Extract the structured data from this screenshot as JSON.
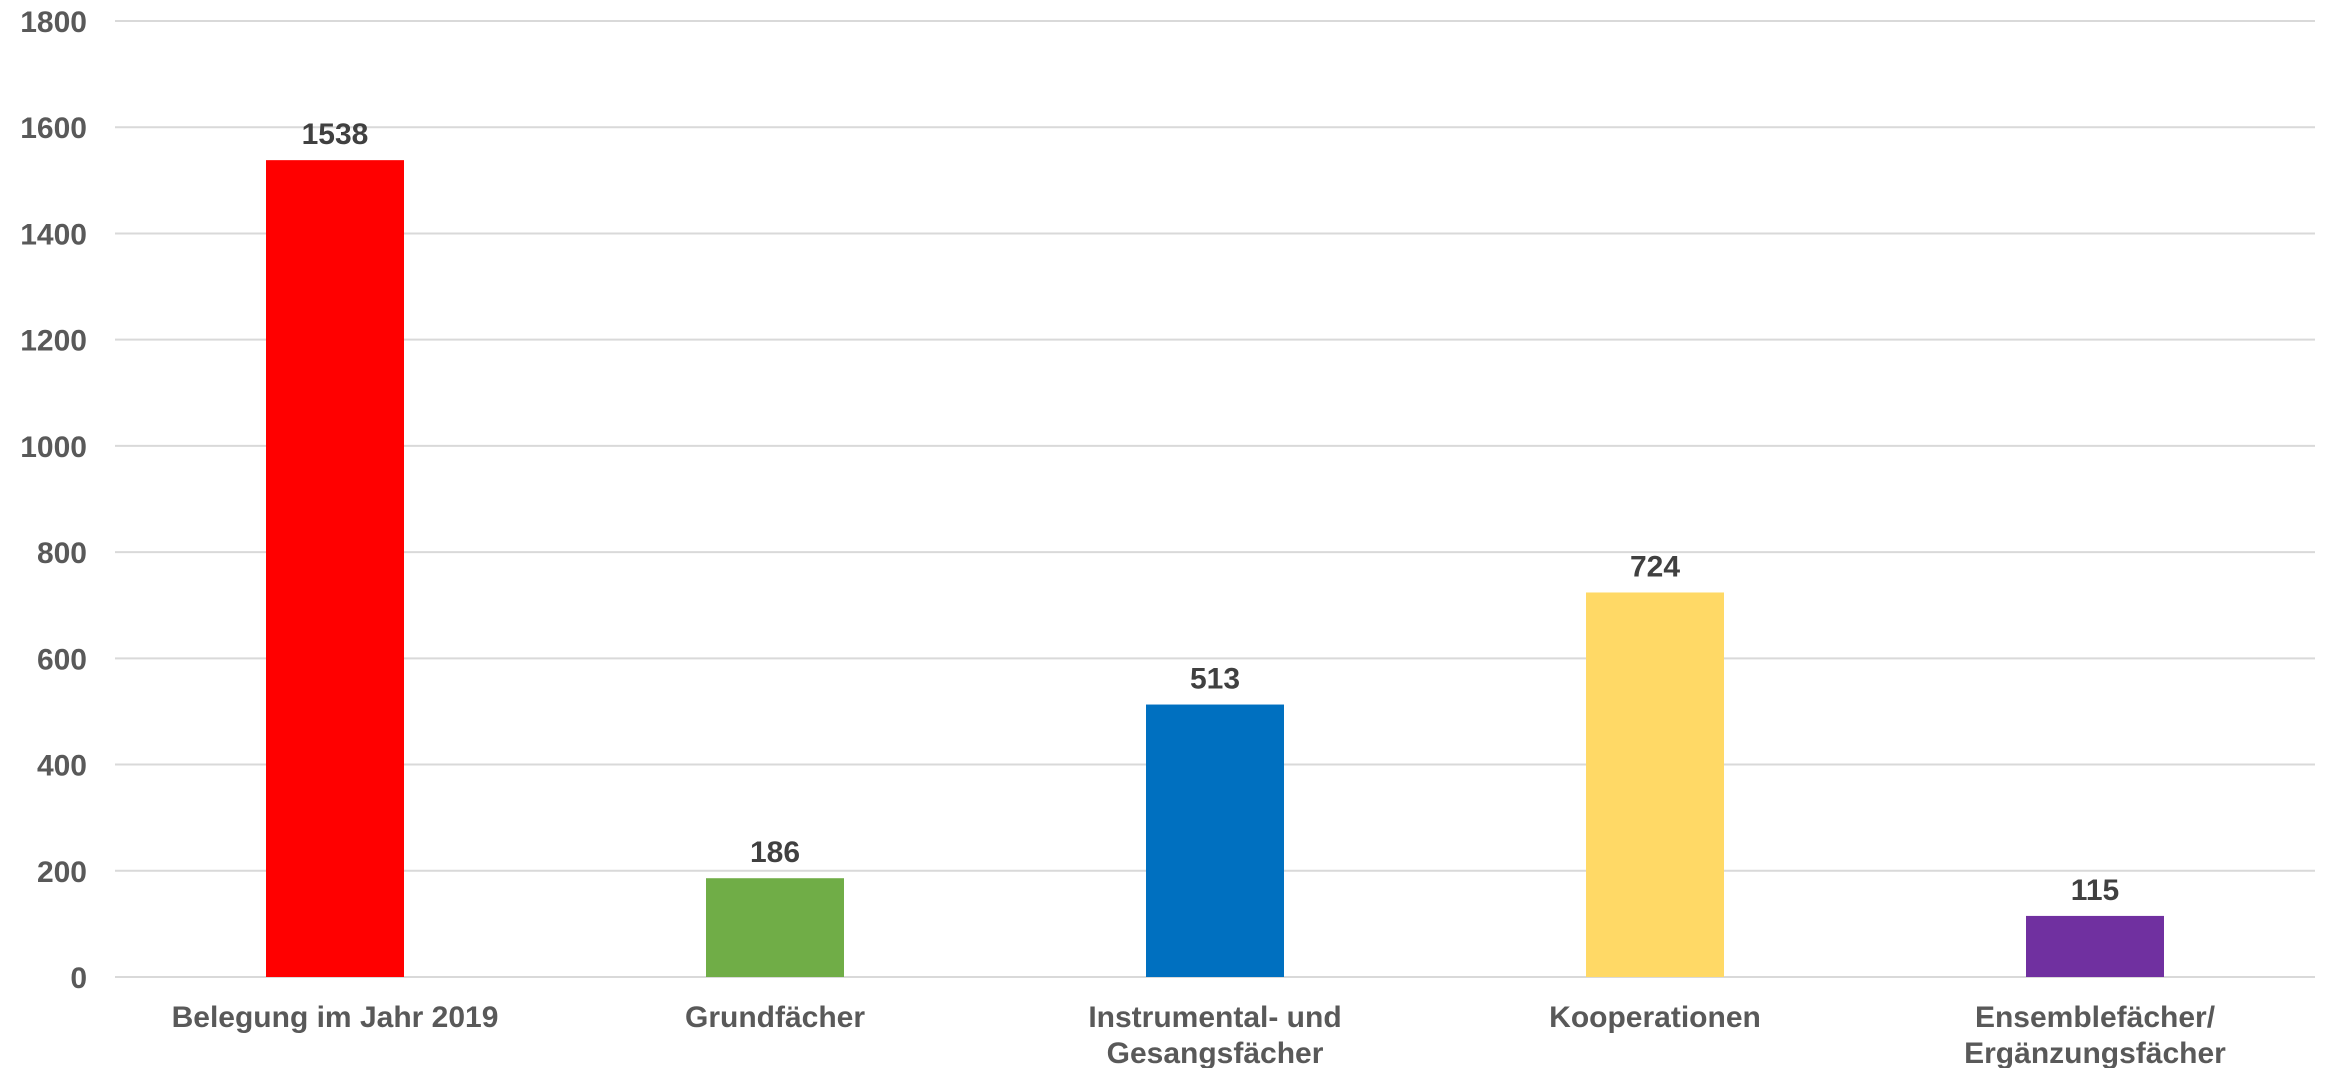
{
  "chart_data": {
    "type": "bar",
    "title": "",
    "xlabel": "",
    "ylabel": "",
    "ylim": [
      0,
      1800
    ],
    "yticks": [
      0,
      200,
      400,
      600,
      800,
      1000,
      1200,
      1400,
      1600,
      1800
    ],
    "grid": true,
    "legend": "none",
    "categories": [
      [
        "Belegung im Jahr 2019"
      ],
      [
        "Grundfächer"
      ],
      [
        "Instrumental- und",
        "Gesangsfächer"
      ],
      [
        "Kooperationen"
      ],
      [
        "Ensemblefächer/",
        "Ergänzungsfächer"
      ]
    ],
    "values": [
      1538,
      186,
      513,
      724,
      115
    ],
    "colors": [
      "#ff0000",
      "#70ad47",
      "#0070c0",
      "#ffd966",
      "#7030a0"
    ]
  }
}
